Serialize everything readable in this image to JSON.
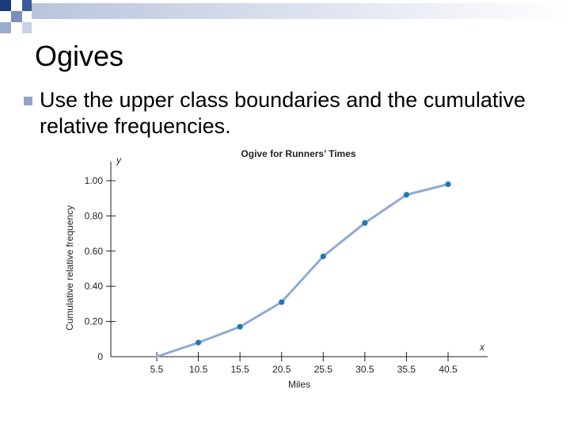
{
  "slide": {
    "title": "Ogives",
    "bullet": "Use the upper class boundaries and the cumulative relative frequencies."
  },
  "colors": {
    "accent": "#1a3a7a",
    "line": "#8eaad4",
    "marker": "#1e78b4",
    "axis": "#231f20"
  },
  "chart_data": {
    "type": "line",
    "title": "Ogive for Runners’ Times",
    "xlabel": "Miles",
    "ylabel": "Cumulative relative frequency",
    "x_axis_symbol": "x",
    "y_axis_symbol": "y",
    "x_ticks": [
      "5.5",
      "10.5",
      "15.5",
      "20.5",
      "25.5",
      "30.5",
      "35.5",
      "40.5"
    ],
    "y_ticks": [
      "0",
      "0.20",
      "0.40",
      "0.60",
      "0.80",
      "1.00"
    ],
    "xlim": [
      5.5,
      40.5
    ],
    "ylim": [
      0,
      1.0
    ],
    "grid": false,
    "series": [
      {
        "x": [
          5.5,
          10.5,
          15.5,
          20.5,
          25.5,
          30.5,
          35.5,
          40.5
        ],
        "y": [
          0.0,
          0.08,
          0.17,
          0.31,
          0.57,
          0.76,
          0.92,
          0.98
        ]
      }
    ]
  }
}
